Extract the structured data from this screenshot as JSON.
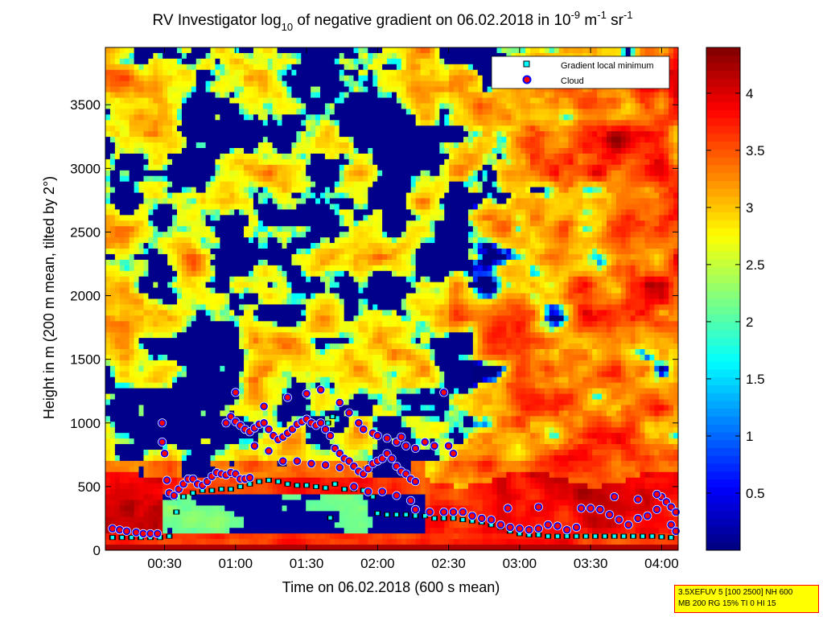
{
  "chart_data": {
    "type": "heatmap",
    "title": {
      "prefix": "RV Investigator log",
      "sub": "10",
      "middle": " of negative gradient on 06.02.2018 in 10",
      "sup1": "-9",
      "unit1": " m",
      "sup2": "-1",
      "unit2": " sr",
      "sup3": "-1"
    },
    "xlabel": "Time on 06.02.2018 (600 s mean)",
    "ylabel": "Height in m (200 m mean, tilted by 2°)",
    "x_ticks": [
      "00:30",
      "01:00",
      "01:30",
      "02:00",
      "02:30",
      "03:00",
      "03:30",
      "04:00"
    ],
    "x_tick_minutes": [
      30,
      60,
      90,
      120,
      150,
      180,
      210,
      240
    ],
    "x_range_minutes": [
      5,
      247
    ],
    "y_ticks": [
      0,
      500,
      1000,
      1500,
      2000,
      2500,
      3000,
      3500
    ],
    "y_range": [
      0,
      3950
    ],
    "colorbar": {
      "ticks": [
        0.5,
        1,
        1.5,
        2,
        2.5,
        3,
        3.5,
        4
      ],
      "range": [
        0,
        4.4
      ],
      "colormap": "jet"
    },
    "legend": {
      "placement": "top-right",
      "entries": [
        {
          "label": "Gradient local minimum",
          "marker": "square",
          "color": "#00ffff"
        },
        {
          "label": "Cloud",
          "marker": "circle",
          "color": "#ff0000"
        }
      ]
    },
    "series": [
      {
        "name": "Gradient local minimum",
        "points": [
          [
            8,
            100
          ],
          [
            12,
            100
          ],
          [
            16,
            100
          ],
          [
            20,
            100
          ],
          [
            24,
            100
          ],
          [
            28,
            100
          ],
          [
            32,
            110
          ],
          [
            35,
            300
          ],
          [
            38,
            420
          ],
          [
            42,
            450
          ],
          [
            46,
            470
          ],
          [
            50,
            470
          ],
          [
            54,
            480
          ],
          [
            58,
            480
          ],
          [
            62,
            500
          ],
          [
            66,
            520
          ],
          [
            70,
            540
          ],
          [
            74,
            550
          ],
          [
            78,
            540
          ],
          [
            82,
            520
          ],
          [
            86,
            510
          ],
          [
            90,
            510
          ],
          [
            94,
            500
          ],
          [
            98,
            490
          ],
          [
            100,
            255
          ],
          [
            102,
            520
          ],
          [
            106,
            480
          ],
          [
            110,
            480
          ],
          [
            114,
            470
          ],
          [
            118,
            420
          ],
          [
            120,
            290
          ],
          [
            124,
            280
          ],
          [
            128,
            280
          ],
          [
            132,
            280
          ],
          [
            136,
            270
          ],
          [
            140,
            270
          ],
          [
            144,
            250
          ],
          [
            148,
            250
          ],
          [
            152,
            250
          ],
          [
            156,
            240
          ],
          [
            160,
            230
          ],
          [
            164,
            220
          ],
          [
            168,
            200
          ],
          [
            172,
            180
          ],
          [
            176,
            150
          ],
          [
            180,
            130
          ],
          [
            184,
            120
          ],
          [
            188,
            120
          ],
          [
            192,
            110
          ],
          [
            196,
            110
          ],
          [
            200,
            110
          ],
          [
            204,
            110
          ],
          [
            208,
            110
          ],
          [
            212,
            110
          ],
          [
            216,
            110
          ],
          [
            220,
            110
          ],
          [
            224,
            110
          ],
          [
            228,
            110
          ],
          [
            232,
            110
          ],
          [
            236,
            110
          ],
          [
            240,
            105
          ],
          [
            244,
            100
          ],
          [
            99,
            1000
          ],
          [
            101,
            1050
          ]
        ]
      },
      {
        "name": "Cloud",
        "points": [
          [
            8,
            170
          ],
          [
            11,
            160
          ],
          [
            14,
            150
          ],
          [
            18,
            140
          ],
          [
            21,
            130
          ],
          [
            24,
            130
          ],
          [
            27,
            130
          ],
          [
            29,
            850
          ],
          [
            29,
            1000
          ],
          [
            30,
            760
          ],
          [
            31,
            550
          ],
          [
            32,
            450
          ],
          [
            34,
            430
          ],
          [
            36,
            480
          ],
          [
            38,
            520
          ],
          [
            40,
            560
          ],
          [
            42,
            560
          ],
          [
            44,
            520
          ],
          [
            46,
            510
          ],
          [
            48,
            540
          ],
          [
            50,
            580
          ],
          [
            52,
            610
          ],
          [
            54,
            600
          ],
          [
            56,
            590
          ],
          [
            58,
            610
          ],
          [
            60,
            600
          ],
          [
            62,
            560
          ],
          [
            64,
            560
          ],
          [
            66,
            570
          ],
          [
            56,
            1000
          ],
          [
            58,
            1050
          ],
          [
            60,
            1010
          ],
          [
            62,
            980
          ],
          [
            64,
            950
          ],
          [
            66,
            930
          ],
          [
            68,
            960
          ],
          [
            70,
            990
          ],
          [
            72,
            1000
          ],
          [
            74,
            950
          ],
          [
            76,
            900
          ],
          [
            78,
            870
          ],
          [
            80,
            890
          ],
          [
            82,
            920
          ],
          [
            84,
            950
          ],
          [
            86,
            990
          ],
          [
            88,
            1010
          ],
          [
            90,
            1030
          ],
          [
            92,
            1000
          ],
          [
            94,
            980
          ],
          [
            96,
            1000
          ],
          [
            98,
            950
          ],
          [
            100,
            900
          ],
          [
            102,
            800
          ],
          [
            104,
            760
          ],
          [
            106,
            720
          ],
          [
            108,
            700
          ],
          [
            110,
            660
          ],
          [
            112,
            620
          ],
          [
            114,
            600
          ],
          [
            116,
            640
          ],
          [
            118,
            680
          ],
          [
            120,
            700
          ],
          [
            122,
            720
          ],
          [
            124,
            760
          ],
          [
            126,
            720
          ],
          [
            128,
            660
          ],
          [
            130,
            620
          ],
          [
            132,
            600
          ],
          [
            134,
            560
          ],
          [
            136,
            540
          ],
          [
            60,
            1240
          ],
          [
            72,
            1130
          ],
          [
            82,
            1200
          ],
          [
            90,
            1230
          ],
          [
            96,
            1260
          ],
          [
            104,
            1160
          ],
          [
            108,
            1080
          ],
          [
            112,
            1000
          ],
          [
            114,
            950
          ],
          [
            118,
            920
          ],
          [
            120,
            900
          ],
          [
            124,
            880
          ],
          [
            128,
            850
          ],
          [
            130,
            890
          ],
          [
            132,
            820
          ],
          [
            136,
            800
          ],
          [
            140,
            850
          ],
          [
            144,
            820
          ],
          [
            148,
            1240
          ],
          [
            150,
            820
          ],
          [
            152,
            760
          ],
          [
            68,
            820
          ],
          [
            74,
            780
          ],
          [
            80,
            700
          ],
          [
            86,
            700
          ],
          [
            92,
            680
          ],
          [
            98,
            670
          ],
          [
            104,
            650
          ],
          [
            110,
            500
          ],
          [
            116,
            460
          ],
          [
            122,
            460
          ],
          [
            128,
            430
          ],
          [
            134,
            390
          ],
          [
            136,
            320
          ],
          [
            142,
            300
          ],
          [
            148,
            300
          ],
          [
            152,
            300
          ],
          [
            156,
            300
          ],
          [
            160,
            270
          ],
          [
            164,
            250
          ],
          [
            168,
            240
          ],
          [
            172,
            200
          ],
          [
            176,
            180
          ],
          [
            180,
            170
          ],
          [
            184,
            160
          ],
          [
            188,
            170
          ],
          [
            192,
            200
          ],
          [
            196,
            190
          ],
          [
            200,
            160
          ],
          [
            204,
            180
          ],
          [
            206,
            330
          ],
          [
            210,
            330
          ],
          [
            214,
            320
          ],
          [
            218,
            280
          ],
          [
            222,
            240
          ],
          [
            226,
            200
          ],
          [
            230,
            250
          ],
          [
            234,
            270
          ],
          [
            238,
            320
          ],
          [
            240,
            420
          ],
          [
            242,
            380
          ],
          [
            244,
            340
          ],
          [
            246,
            300
          ],
          [
            244,
            200
          ],
          [
            246,
            150
          ],
          [
            175,
            330
          ],
          [
            188,
            340
          ],
          [
            220,
            420
          ],
          [
            230,
            400
          ],
          [
            238,
            440
          ]
        ]
      }
    ]
  },
  "params_box": {
    "line1": "3.5XEFUV 5 [100 2500] NH 600",
    "line2": "MB 200 RG 15% TI 0 HI 15"
  }
}
